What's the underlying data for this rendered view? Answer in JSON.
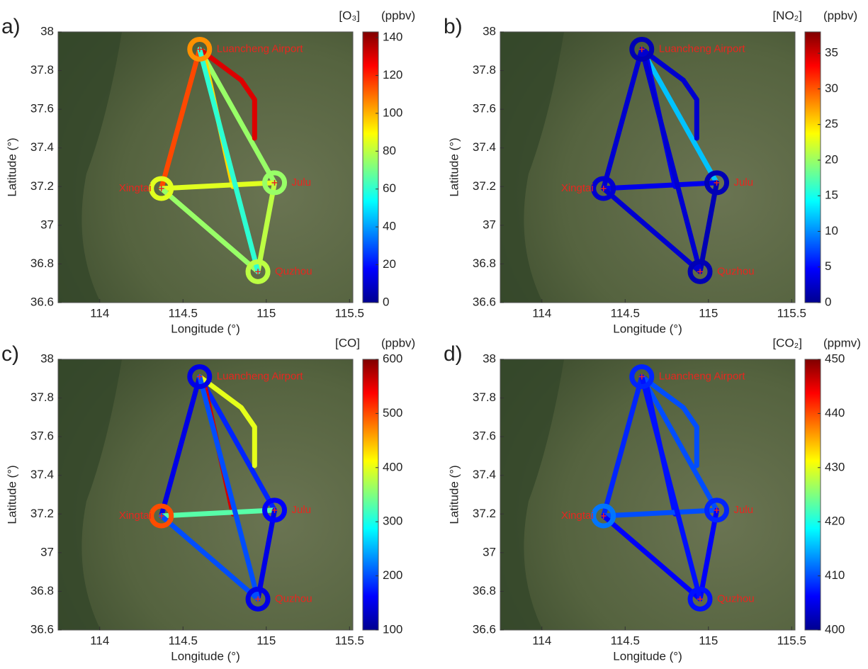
{
  "routes": [
    {
      "lon": [
        114.6,
        114.37
      ],
      "lat": [
        37.91,
        37.19
      ]
    },
    {
      "lon": [
        114.6,
        115.05
      ],
      "lat": [
        37.91,
        37.22
      ]
    },
    {
      "lon": [
        114.62,
        114.8
      ],
      "lat": [
        37.9,
        37.2
      ]
    },
    {
      "lon": [
        114.6,
        114.85,
        114.93,
        114.93
      ],
      "lat": [
        37.91,
        37.75,
        37.65,
        37.45
      ]
    },
    {
      "lon": [
        114.37,
        115.05
      ],
      "lat": [
        37.19,
        37.22
      ]
    },
    {
      "lon": [
        114.37,
        114.95
      ],
      "lat": [
        37.19,
        36.76
      ]
    },
    {
      "lon": [
        115.05,
        114.95
      ],
      "lat": [
        37.22,
        36.76
      ]
    },
    {
      "lon": [
        114.6,
        114.95
      ],
      "lat": [
        37.91,
        36.76
      ]
    }
  ],
  "chart_data": [
    {
      "type": "map",
      "panel_label": "a)",
      "xlabel": "Longitude (°)",
      "ylabel": "Latitude (°)",
      "xlim": [
        113.75,
        115.52
      ],
      "xticks": [
        114,
        114.5,
        115,
        115.5
      ],
      "ylim": [
        36.6,
        38
      ],
      "yticks": [
        36.6,
        36.8,
        37,
        37.2,
        37.4,
        37.6,
        37.8,
        38
      ],
      "colorbar_label": "[O₃]",
      "colorbar_unit": "(ppbv)",
      "clim": [
        0,
        143
      ],
      "cticks": [
        0,
        20,
        40,
        60,
        80,
        100,
        120,
        140
      ],
      "track_values": [
        115,
        75,
        95,
        130,
        85,
        75,
        80,
        60
      ],
      "places": [
        {
          "name": "Luancheng Airport",
          "lon": 114.6,
          "lat": 37.91,
          "value": 105
        },
        {
          "name": "Xingtai",
          "lon": 114.37,
          "lat": 37.19,
          "value": 85
        },
        {
          "name": "Julu",
          "lon": 115.05,
          "lat": 37.22,
          "value": 75
        },
        {
          "name": "Quzhou",
          "lon": 114.95,
          "lat": 36.76,
          "value": 80
        }
      ]
    },
    {
      "type": "map",
      "panel_label": "b)",
      "xlabel": "Longitude (°)",
      "ylabel": "Latitude (°)",
      "xlim": [
        113.75,
        115.52
      ],
      "xticks": [
        114,
        114.5,
        115,
        115.5
      ],
      "ylim": [
        36.6,
        38
      ],
      "yticks": [
        36.6,
        36.8,
        37,
        37.2,
        37.4,
        37.6,
        37.8,
        38
      ],
      "colorbar_label": "[NO₂]",
      "colorbar_unit": "(ppbv)",
      "clim": [
        0,
        38
      ],
      "cticks": [
        0,
        5,
        10,
        15,
        20,
        25,
        30,
        35
      ],
      "track_values": [
        3,
        12,
        4,
        3,
        4,
        3,
        2,
        3
      ],
      "places": [
        {
          "name": "Luancheng Airport",
          "lon": 114.6,
          "lat": 37.91,
          "value": 2
        },
        {
          "name": "Xingtai",
          "lon": 114.37,
          "lat": 37.19,
          "value": 3
        },
        {
          "name": "Julu",
          "lon": 115.05,
          "lat": 37.22,
          "value": 2
        },
        {
          "name": "Quzhou",
          "lon": 114.95,
          "lat": 36.76,
          "value": 2
        }
      ]
    },
    {
      "type": "map",
      "panel_label": "c)",
      "xlabel": "Longitude (°)",
      "ylabel": "Latitude (°)",
      "xlim": [
        113.75,
        115.52
      ],
      "xticks": [
        114,
        114.5,
        115,
        115.5
      ],
      "ylim": [
        36.6,
        38
      ],
      "yticks": [
        36.6,
        36.8,
        37,
        37.2,
        37.4,
        37.6,
        37.8,
        38
      ],
      "colorbar_label": "[CO]",
      "colorbar_unit": "(ppbv)",
      "clim": [
        100,
        600
      ],
      "cticks": [
        100,
        200,
        300,
        400,
        500,
        600
      ],
      "track_values": [
        150,
        180,
        560,
        400,
        330,
        200,
        150,
        200
      ],
      "places": [
        {
          "name": "Luancheng Airport",
          "lon": 114.6,
          "lat": 37.91,
          "value": 150
        },
        {
          "name": "Xingtai",
          "lon": 114.37,
          "lat": 37.19,
          "value": 500
        },
        {
          "name": "Julu",
          "lon": 115.05,
          "lat": 37.22,
          "value": 160
        },
        {
          "name": "Quzhou",
          "lon": 114.95,
          "lat": 36.76,
          "value": 150
        }
      ]
    },
    {
      "type": "map",
      "panel_label": "d)",
      "xlabel": "Longitude (°)",
      "ylabel": "Latitude (°)",
      "xlim": [
        113.75,
        115.52
      ],
      "xticks": [
        114,
        114.5,
        115,
        115.5
      ],
      "ylim": [
        36.6,
        38
      ],
      "yticks": [
        36.6,
        36.8,
        37,
        37.2,
        37.4,
        37.6,
        37.8,
        38
      ],
      "colorbar_label": "[CO₂]",
      "colorbar_unit": "(ppmv)",
      "clim": [
        400,
        450
      ],
      "cticks": [
        400,
        410,
        420,
        430,
        440,
        450
      ],
      "track_values": [
        408,
        410,
        407,
        410,
        410,
        406,
        406,
        407
      ],
      "places": [
        {
          "name": "Luancheng Airport",
          "lon": 114.6,
          "lat": 37.91,
          "value": 408
        },
        {
          "name": "Xingtai",
          "lon": 114.37,
          "lat": 37.19,
          "value": 412
        },
        {
          "name": "Julu",
          "lon": 115.05,
          "lat": 37.22,
          "value": 408
        },
        {
          "name": "Quzhou",
          "lon": 114.95,
          "lat": 36.76,
          "value": 407
        }
      ]
    }
  ]
}
